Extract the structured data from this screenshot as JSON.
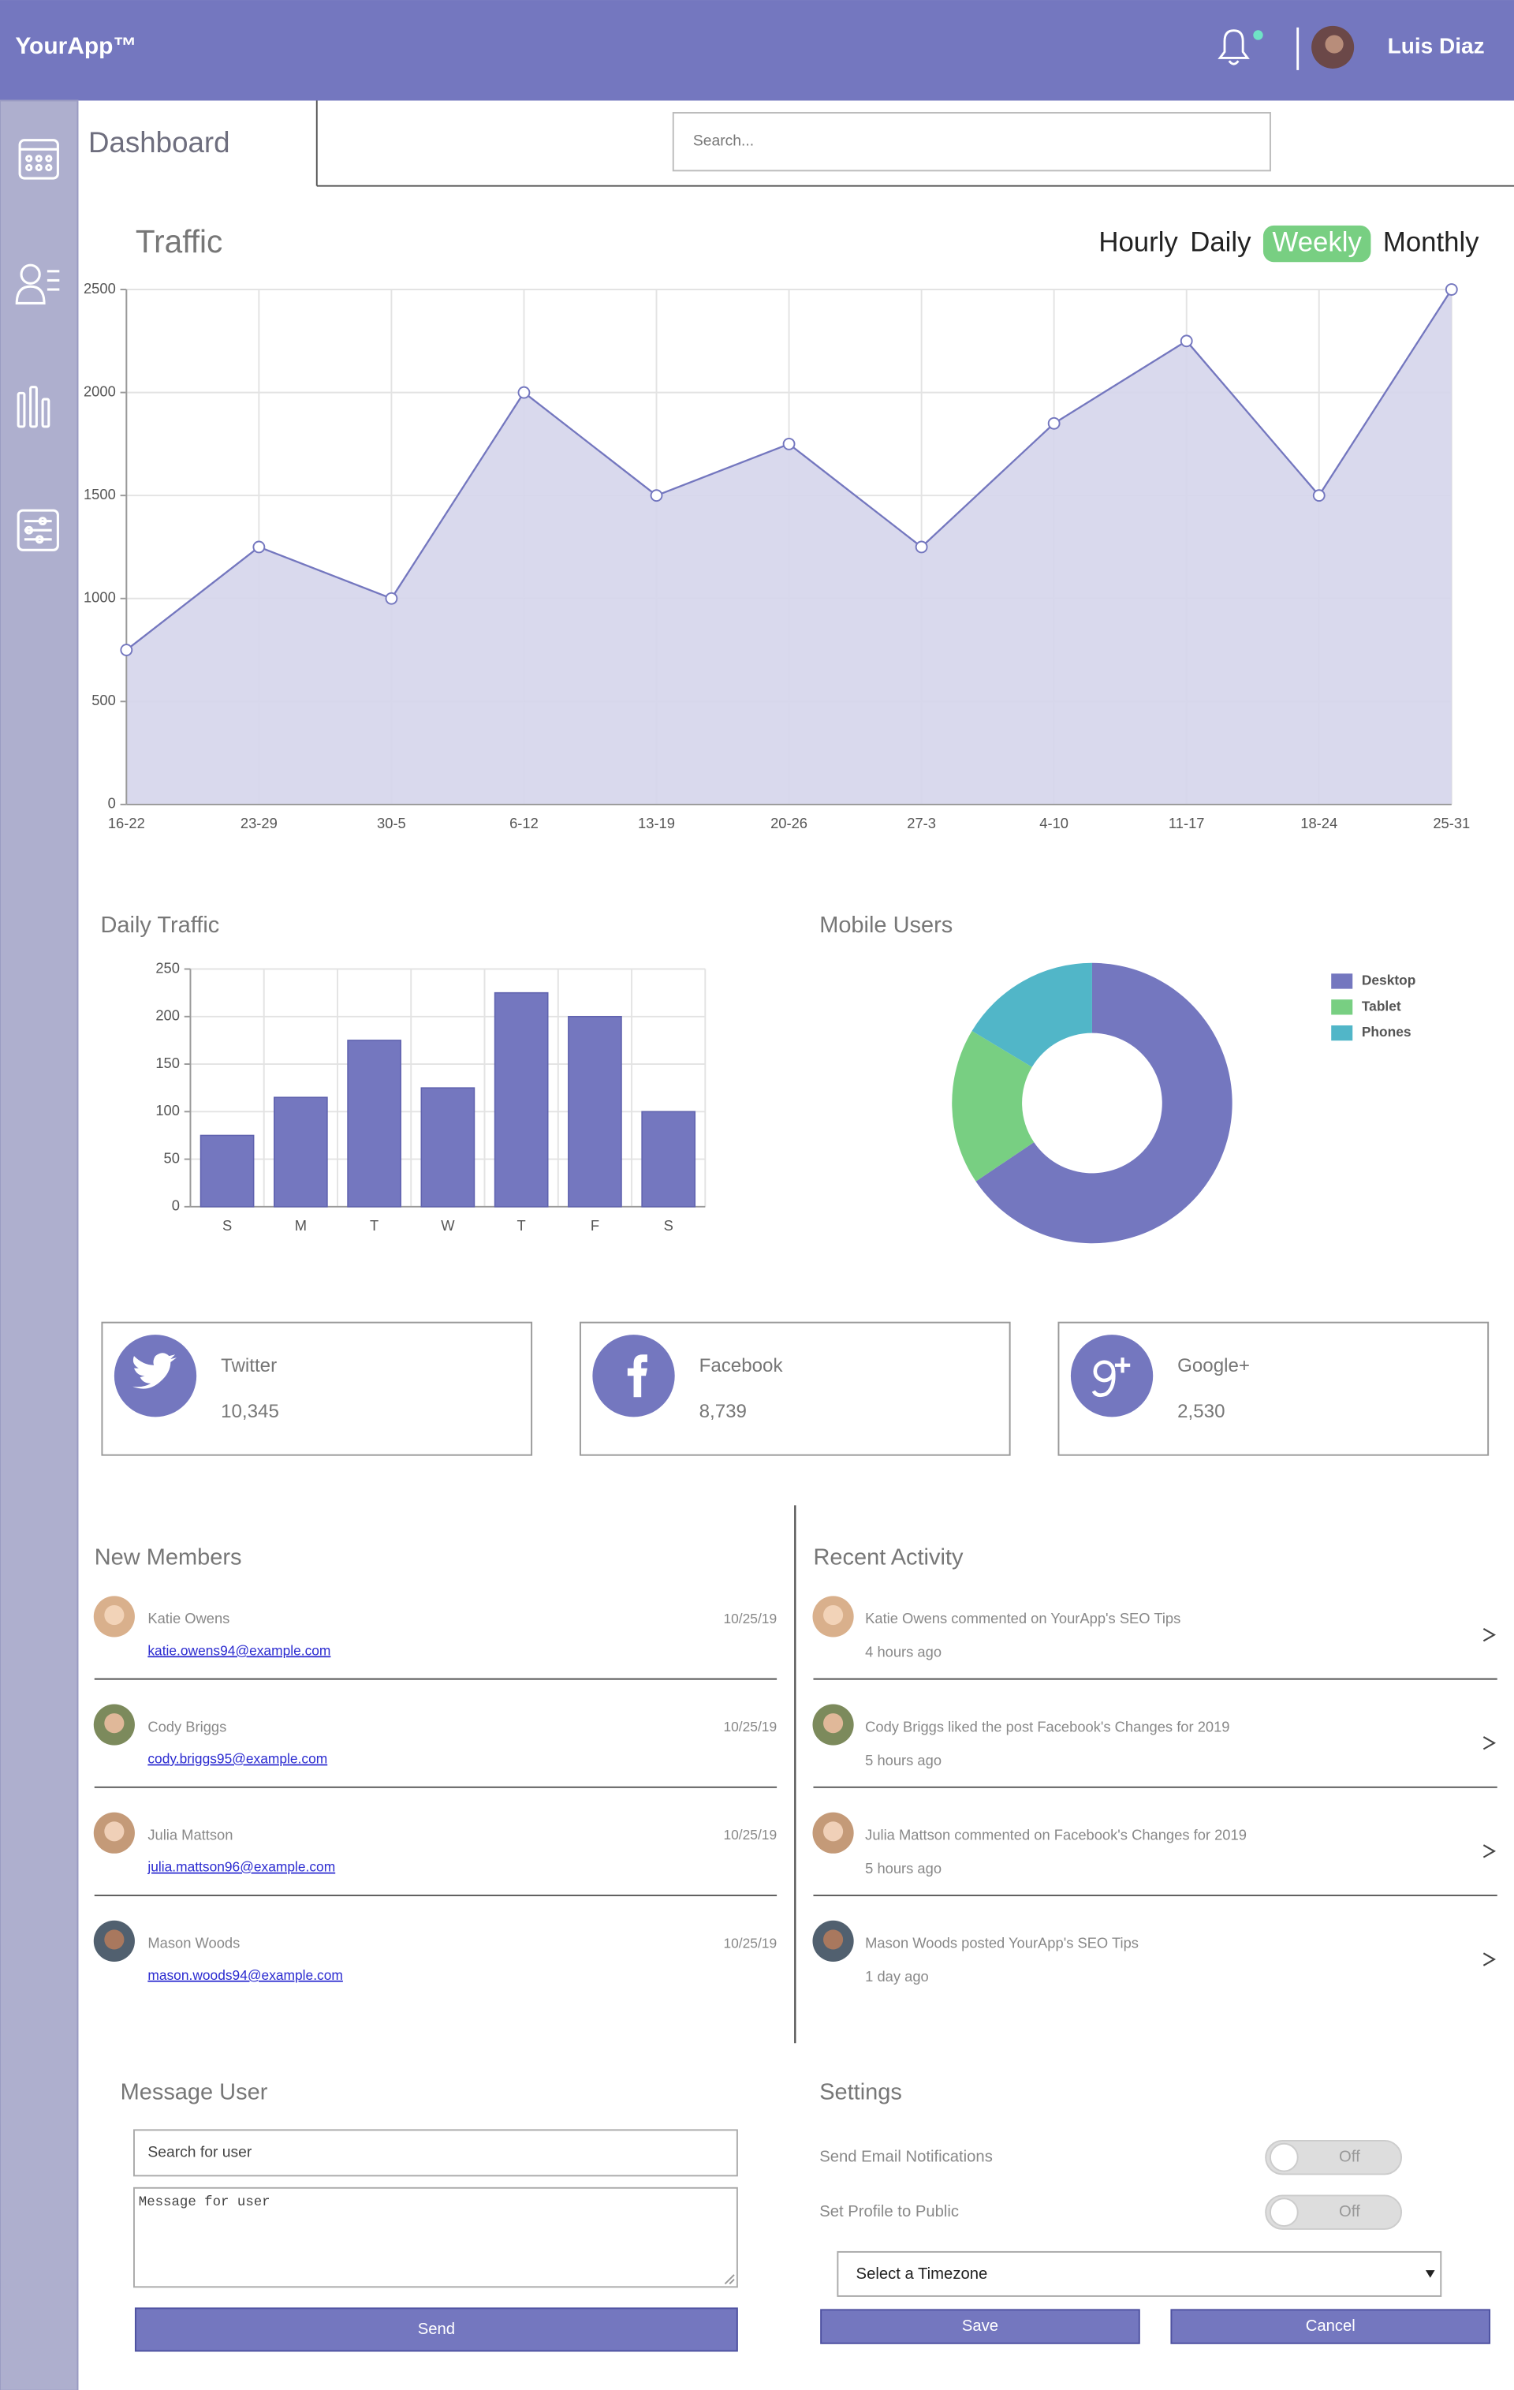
{
  "header": {
    "logo": "YourApp™",
    "user": "Luis Diaz"
  },
  "toolbar": {
    "title": "Dashboard",
    "search_placeholder": "Search..."
  },
  "traffic_tabs": [
    {
      "label": "Hourly",
      "active": false
    },
    {
      "label": "Daily",
      "active": false
    },
    {
      "label": "Weekly",
      "active": true
    },
    {
      "label": "Monthly",
      "active": false
    }
  ],
  "chart_data": [
    {
      "type": "line",
      "title": "Traffic",
      "area": true,
      "color": "#7477BF",
      "area_color": "#D5D5EB",
      "grid": true,
      "categories": [
        "16-22",
        "23-29",
        "30-5",
        "6-12",
        "13-19",
        "20-26",
        "27-3",
        "4-10",
        "11-17",
        "18-24",
        "25-31"
      ],
      "values": [
        750,
        1250,
        1000,
        2000,
        1500,
        1750,
        1250,
        1850,
        2250,
        1500,
        2500
      ],
      "ylim": [
        0,
        2500
      ],
      "yticks": [
        0,
        500,
        1000,
        1500,
        2000,
        2500
      ]
    },
    {
      "type": "bar",
      "title": "Daily Traffic",
      "color": "#7477BF",
      "grid": true,
      "categories": [
        "S",
        "M",
        "T",
        "W",
        "T",
        "F",
        "S"
      ],
      "values": [
        75,
        115,
        175,
        125,
        225,
        200,
        100
      ],
      "ylim": [
        0,
        250
      ],
      "yticks": [
        0,
        50,
        100,
        150,
        200,
        250
      ]
    },
    {
      "type": "doughnut",
      "title": "Mobile Users",
      "legend": "right",
      "categories": [
        "Desktop",
        "Tablet",
        "Phones"
      ],
      "values": [
        2000,
        550,
        500
      ],
      "colors": [
        "#7477BF",
        "#78CF82",
        "#51B6C8"
      ]
    }
  ],
  "social": [
    {
      "name": "Twitter",
      "count": "10,345"
    },
    {
      "name": "Facebook",
      "count": "8,739"
    },
    {
      "name": "Google+",
      "count": "2,530"
    }
  ],
  "new_members": {
    "title": "New Members",
    "rows": [
      {
        "name": "Katie Owens",
        "email": "katie.owens94@example.com",
        "date": "10/25/19"
      },
      {
        "name": "Cody Briggs",
        "email": "cody.briggs95@example.com",
        "date": "10/25/19"
      },
      {
        "name": "Julia Mattson",
        "email": "julia.mattson96@example.com",
        "date": "10/25/19"
      },
      {
        "name": "Mason Woods",
        "email": "mason.woods94@example.com",
        "date": "10/25/19"
      }
    ]
  },
  "recent_activity": {
    "title": "Recent Activity",
    "rows": [
      {
        "text": "Katie Owens commented on YourApp's SEO Tips",
        "time": "4 hours ago"
      },
      {
        "text": "Cody Briggs liked the post Facebook's Changes for 2019",
        "time": "5 hours ago"
      },
      {
        "text": "Julia Mattson commented on Facebook's Changes for 2019",
        "time": "5 hours ago"
      },
      {
        "text": "Mason Woods posted YourApp's SEO Tips",
        "time": "1 day ago"
      }
    ]
  },
  "message_user": {
    "title": "Message User",
    "search_placeholder": "Search for user",
    "message_placeholder": "Message for user",
    "button": "Send"
  },
  "settings": {
    "title": "Settings",
    "options": [
      {
        "label": "Send Email Notifications",
        "state": "Off"
      },
      {
        "label": "Set Profile to Public",
        "state": "Off"
      }
    ],
    "timezone": "Select a Timezone",
    "save": "Save",
    "cancel": "Cancel"
  }
}
